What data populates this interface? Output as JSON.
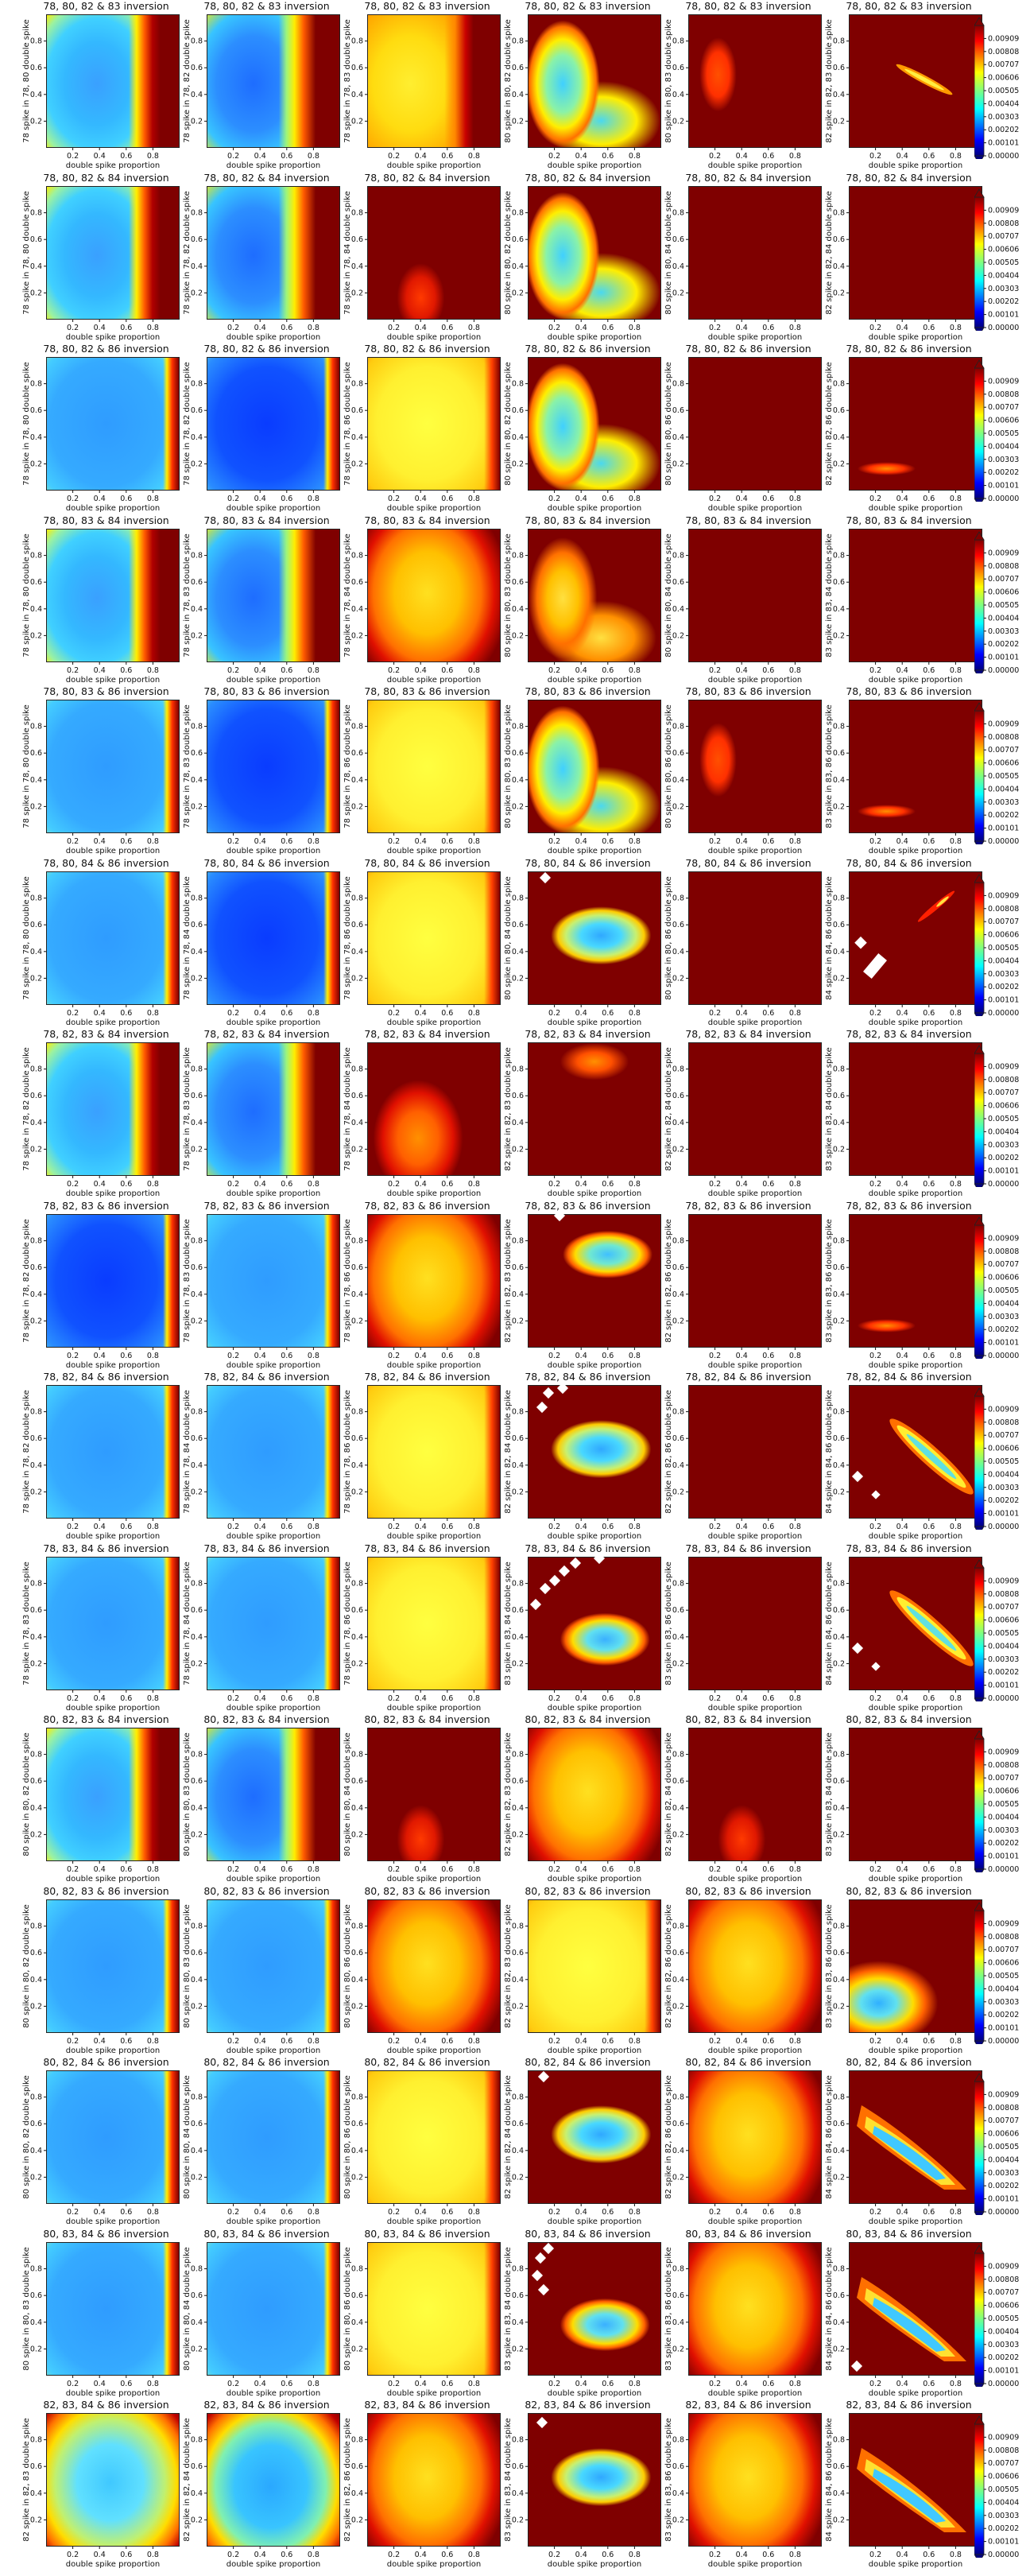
{
  "chart_data": {
    "type": "heatmap",
    "description_units": "relative error per 0.1 grid",
    "xlabel": "double spike proportion",
    "xticks": [
      "0.2",
      "0.4",
      "0.6",
      "0.8"
    ],
    "yticks": [
      "0.2",
      "0.4",
      "0.6",
      "0.8"
    ],
    "colorbar_ticks": [
      "0.00909",
      "0.00808",
      "0.00707",
      "0.00606",
      "0.00505",
      "0.00404",
      "0.00303",
      "0.00202",
      "0.00101",
      "0.00000"
    ],
    "colorbar_range": [
      0.0,
      0.0101
    ],
    "colormap": "jet",
    "rows": [
      {
        "title": "78, 80, 82 & 83 inversion",
        "ylabels": [
          "78 spike in 78, 80 double spike",
          "78 spike in 78, 82 double spike",
          "78 spike in 78, 83 double spike",
          "80 spike in 80, 82 double spike",
          "80 spike in 80, 83 double spike",
          "82 spike in 82, 83 double spike"
        ],
        "patterns": [
          "leftbowl",
          "leftbowl_soft",
          "leftbowl_warm",
          "hook",
          "blob_small",
          "diag_thin"
        ]
      },
      {
        "title": "78, 80, 82 & 84 inversion",
        "ylabels": [
          "78 spike in 78, 80 double spike",
          "78 spike in 78, 82 double spike",
          "78 spike in 78, 84 double spike",
          "80 spike in 80, 82 double spike",
          "80 spike in 80, 84 double spike",
          "82 spike in 82, 84 double spike"
        ],
        "patterns": [
          "leftbowl",
          "leftbowl_soft",
          "blob_bottom",
          "hook",
          "empty",
          "empty"
        ]
      },
      {
        "title": "78, 80, 82 & 86 inversion",
        "ylabels": [
          "78 spike in 78, 80 double spike",
          "78 spike in 78, 82 double spike",
          "78 spike in 78, 86 double spike",
          "80 spike in 80, 82 double spike",
          "80 spike in 80, 86 double spike",
          "82 spike in 82, 86 double spike"
        ],
        "patterns": [
          "fullbowl",
          "fullbowl_deep",
          "warmbowl",
          "hook",
          "empty",
          "diag_low"
        ]
      },
      {
        "title": "78, 80, 83 & 84 inversion",
        "ylabels": [
          "78 spike in 78, 80 double spike",
          "78 spike in 78, 83 double spike",
          "78 spike in 78, 84 double spike",
          "80 spike in 80, 83 double spike",
          "80 spike in 80, 84 double spike",
          "83 spike in 83, 84 double spike"
        ],
        "patterns": [
          "leftbowl",
          "leftbowl_soft",
          "warmbowl_hot",
          "hook_warm",
          "empty",
          "empty"
        ]
      },
      {
        "title": "78, 80, 83 & 86 inversion",
        "ylabels": [
          "78 spike in 78, 80 double spike",
          "78 spike in 78, 83 double spike",
          "78 spike in 78, 86 double spike",
          "80 spike in 80, 83 double spike",
          "80 spike in 80, 86 double spike",
          "83 spike in 83, 86 double spike"
        ],
        "patterns": [
          "fullbowl",
          "fullbowl_deep",
          "warmbowl",
          "hook",
          "blob_small",
          "diag_low"
        ]
      },
      {
        "title": "78, 80, 84 & 86 inversion",
        "ylabels": [
          "78 spike in 78, 80 double spike",
          "78 spike in 78, 84 double spike",
          "78 spike in 78, 86 double spike",
          "80 spike in 80, 84 double spike",
          "80 spike in 80, 86 double spike",
          "84 spike in 84, 86 double spike"
        ],
        "patterns": [
          "fullbowl",
          "fullbowl_deep",
          "warmbowl",
          "leaf",
          "empty",
          "diag_broken"
        ]
      },
      {
        "title": "78, 82, 83 & 84 inversion",
        "ylabels": [
          "78 spike in 78, 82 double spike",
          "78 spike in 78, 83 double spike",
          "78 spike in 78, 84 double spike",
          "82 spike in 82, 83 double spike",
          "82 spike in 82, 84 double spike",
          "83 spike in 83, 84 double spike"
        ],
        "patterns": [
          "leftbowl",
          "leftbowl_soft",
          "blob_bottom_big",
          "blob_top",
          "empty",
          "empty"
        ]
      },
      {
        "title": "78, 82, 83 & 86 inversion",
        "ylabels": [
          "78 spike in 78, 82 double spike",
          "78 spike in 78, 83 double spike",
          "78 spike in 78, 86 double spike",
          "82 spike in 82, 83 double spike",
          "82 spike in 82, 86 double spike",
          "83 spike in 83, 86 double spike"
        ],
        "patterns": [
          "fullbowl_deep",
          "fullbowl",
          "warmbowl_hot",
          "leaf_top",
          "empty",
          "diag_low"
        ]
      },
      {
        "title": "78, 82, 84 & 86 inversion",
        "ylabels": [
          "78 spike in 78, 82 double spike",
          "78 spike in 78, 84 double spike",
          "78 spike in 78, 86 double spike",
          "82 spike in 82, 84 double spike",
          "82 spike in 82, 86 double spike",
          "84 spike in 84, 86 double spike"
        ],
        "patterns": [
          "fullbowl",
          "fullbowl",
          "warmbowl",
          "leaf",
          "empty",
          "diag_wide"
        ]
      },
      {
        "title": "78, 83, 84 & 86 inversion",
        "ylabels": [
          "78 spike in 78, 83 double spike",
          "78 spike in 78, 84 double spike",
          "78 spike in 78, 86 double spike",
          "83 spike in 83, 84 double spike",
          "83 spike in 83, 86 double spike",
          "84 spike in 84, 86 double spike"
        ],
        "patterns": [
          "fullbowl",
          "fullbowl",
          "warmbowl",
          "leaf_lower",
          "empty",
          "diag_wide"
        ]
      },
      {
        "title": "80, 82, 83 & 84 inversion",
        "ylabels": [
          "80 spike in 80, 82 double spike",
          "80 spike in 80, 83 double spike",
          "80 spike in 80, 84 double spike",
          "82 spike in 82, 83 double spike",
          "82 spike in 82, 84 double spike",
          "83 spike in 83, 84 double spike"
        ],
        "patterns": [
          "leftbowl",
          "leftbowl_soft",
          "blob_bottom",
          "warmbowl_hot",
          "blob_bottom",
          "empty"
        ]
      },
      {
        "title": "80, 82, 83 & 86 inversion",
        "ylabels": [
          "80 spike in 80, 82 double spike",
          "80 spike in 80, 83 double spike",
          "80 spike in 80, 86 double spike",
          "82 spike in 82, 83 double spike",
          "82 spike in 82, 86 double spike",
          "83 spike in 83, 86 double spike"
        ],
        "patterns": [
          "fullbowl",
          "fullbowl",
          "warmbowl_hot",
          "warmbowl",
          "warmbowl_hot",
          "corner_fan"
        ]
      },
      {
        "title": "80, 82, 84 & 86 inversion",
        "ylabels": [
          "80 spike in 80, 82 double spike",
          "80 spike in 80, 84 double spike",
          "80 spike in 80, 86 double spike",
          "82 spike in 82, 84 double spike",
          "82 spike in 82, 86 double spike",
          "84 spike in 84, 86 double spike"
        ],
        "patterns": [
          "fullbowl",
          "fullbowl",
          "warmbowl",
          "leaf",
          "warmbowl_hot",
          "diag_fan"
        ]
      },
      {
        "title": "80, 83, 84 & 86 inversion",
        "ylabels": [
          "80 spike in 80, 83 double spike",
          "80 spike in 80, 84 double spike",
          "80 spike in 80, 86 double spike",
          "83 spike in 83, 84 double spike",
          "83 spike in 83, 86 double spike",
          "84 spike in 84, 86 double spike"
        ],
        "patterns": [
          "fullbowl",
          "fullbowl",
          "warmbowl",
          "leaf_lower",
          "warmbowl_hot",
          "diag_fan"
        ]
      },
      {
        "title": "82, 83, 84 & 86 inversion",
        "ylabels": [
          "82 spike in 82, 83 double spike",
          "82 spike in 82, 84 double spike",
          "82 spike in 82, 86 double spike",
          "83 spike in 83, 84 double spike",
          "83 spike in 83, 86 double spike",
          "84 spike in 84, 86 double spike"
        ],
        "patterns": [
          "roundbowl",
          "roundbowl_cool",
          "warmbowl_hot",
          "leaf",
          "warmbowl_hot",
          "diag_fan"
        ]
      }
    ]
  }
}
